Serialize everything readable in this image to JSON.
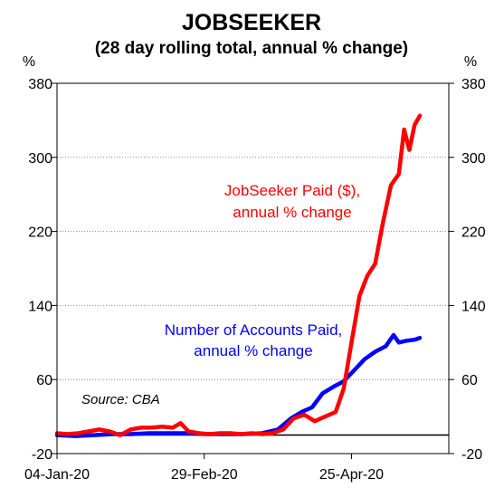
{
  "chart_data": {
    "type": "line",
    "title": "JOBSEEKER",
    "subtitle": "(28 day rolling total, annual % change)",
    "y_unit_left": "%",
    "y_unit_right": "%",
    "ylim": [
      -20,
      380
    ],
    "yticks": [
      "380",
      "300",
      "220",
      "140",
      "60",
      "-20"
    ],
    "ytick_values": [
      380,
      300,
      220,
      140,
      60,
      -20
    ],
    "xlim": [
      "2020-01-04",
      "2020-06-01"
    ],
    "xticks": [
      {
        "label": "04-Jan-20",
        "date": "2020-01-04"
      },
      {
        "label": "29-Feb-20",
        "date": "2020-02-29"
      },
      {
        "label": "25-Apr-20",
        "date": "2020-04-25"
      }
    ],
    "grid": "horizontal dotted",
    "source": "Source: CBA",
    "series": [
      {
        "name": "JobSeeker Paid ($), annual % change",
        "label_lines": [
          "JobSeeker Paid ($),",
          "annual % change"
        ],
        "color": "#ff0000",
        "points": [
          [
            "2020-01-04",
            2
          ],
          [
            "2020-01-08",
            1
          ],
          [
            "2020-01-12",
            2
          ],
          [
            "2020-01-16",
            4
          ],
          [
            "2020-01-20",
            6
          ],
          [
            "2020-01-24",
            4
          ],
          [
            "2020-01-28",
            0
          ],
          [
            "2020-02-01",
            6
          ],
          [
            "2020-02-05",
            8
          ],
          [
            "2020-02-09",
            8
          ],
          [
            "2020-02-13",
            9
          ],
          [
            "2020-02-17",
            8
          ],
          [
            "2020-02-20",
            13
          ],
          [
            "2020-02-23",
            4
          ],
          [
            "2020-02-27",
            2
          ],
          [
            "2020-03-02",
            1
          ],
          [
            "2020-03-06",
            2
          ],
          [
            "2020-03-10",
            2
          ],
          [
            "2020-03-14",
            1
          ],
          [
            "2020-03-18",
            2
          ],
          [
            "2020-03-22",
            1
          ],
          [
            "2020-03-26",
            2
          ],
          [
            "2020-03-30",
            6
          ],
          [
            "2020-04-03",
            18
          ],
          [
            "2020-04-07",
            22
          ],
          [
            "2020-04-11",
            15
          ],
          [
            "2020-04-15",
            20
          ],
          [
            "2020-04-19",
            25
          ],
          [
            "2020-04-22",
            50
          ],
          [
            "2020-04-25",
            100
          ],
          [
            "2020-04-28",
            150
          ],
          [
            "2020-05-01",
            172
          ],
          [
            "2020-05-04",
            185
          ],
          [
            "2020-05-07",
            230
          ],
          [
            "2020-05-10",
            270
          ],
          [
            "2020-05-13",
            282
          ],
          [
            "2020-05-15",
            330
          ],
          [
            "2020-05-17",
            308
          ],
          [
            "2020-05-19",
            335
          ],
          [
            "2020-05-21",
            345
          ]
        ]
      },
      {
        "name": "Number of Accounts Paid, annual % change",
        "label_lines": [
          "Number of Accounts Paid,",
          "annual % change"
        ],
        "color": "#0000ff",
        "points": [
          [
            "2020-01-04",
            0
          ],
          [
            "2020-01-11",
            -1
          ],
          [
            "2020-01-18",
            0
          ],
          [
            "2020-01-25",
            1
          ],
          [
            "2020-02-01",
            1
          ],
          [
            "2020-02-08",
            2
          ],
          [
            "2020-02-15",
            2
          ],
          [
            "2020-02-22",
            2
          ],
          [
            "2020-03-01",
            1
          ],
          [
            "2020-03-08",
            1
          ],
          [
            "2020-03-15",
            1
          ],
          [
            "2020-03-22",
            2
          ],
          [
            "2020-03-28",
            6
          ],
          [
            "2020-04-02",
            18
          ],
          [
            "2020-04-06",
            25
          ],
          [
            "2020-04-10",
            30
          ],
          [
            "2020-04-14",
            45
          ],
          [
            "2020-04-18",
            52
          ],
          [
            "2020-04-22",
            58
          ],
          [
            "2020-04-26",
            70
          ],
          [
            "2020-04-30",
            82
          ],
          [
            "2020-05-04",
            90
          ],
          [
            "2020-05-08",
            96
          ],
          [
            "2020-05-11",
            108
          ],
          [
            "2020-05-13",
            100
          ],
          [
            "2020-05-16",
            102
          ],
          [
            "2020-05-19",
            103
          ],
          [
            "2020-05-21",
            105
          ]
        ]
      }
    ]
  }
}
